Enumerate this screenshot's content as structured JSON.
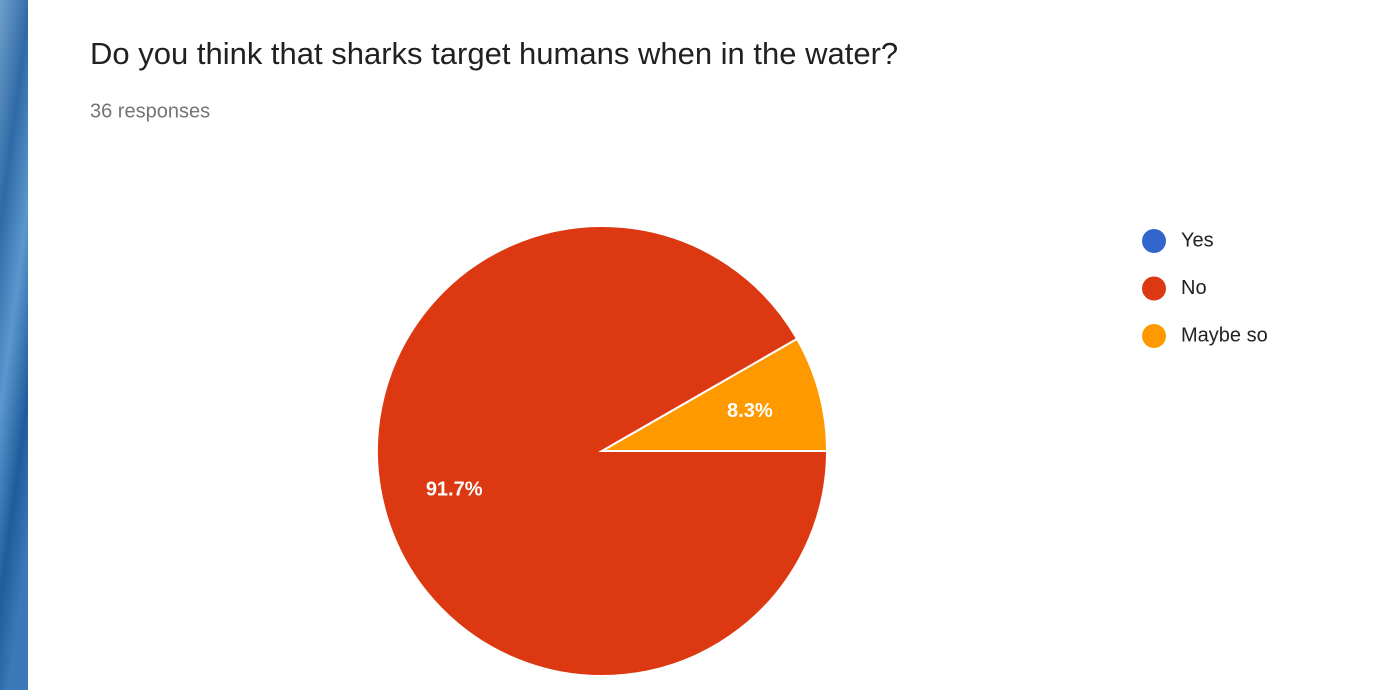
{
  "chart_data": {
    "type": "pie",
    "title": "Do you think that sharks target humans when in the water?",
    "subtitle": "36 responses",
    "categories": [
      "Yes",
      "No",
      "Maybe so"
    ],
    "values": [
      0,
      91.7,
      8.3
    ],
    "value_labels": [
      null,
      "91.7%",
      "8.3%"
    ],
    "colors": [
      "#3366cc",
      "#dc3912",
      "#ff9900"
    ],
    "legend": "right"
  }
}
